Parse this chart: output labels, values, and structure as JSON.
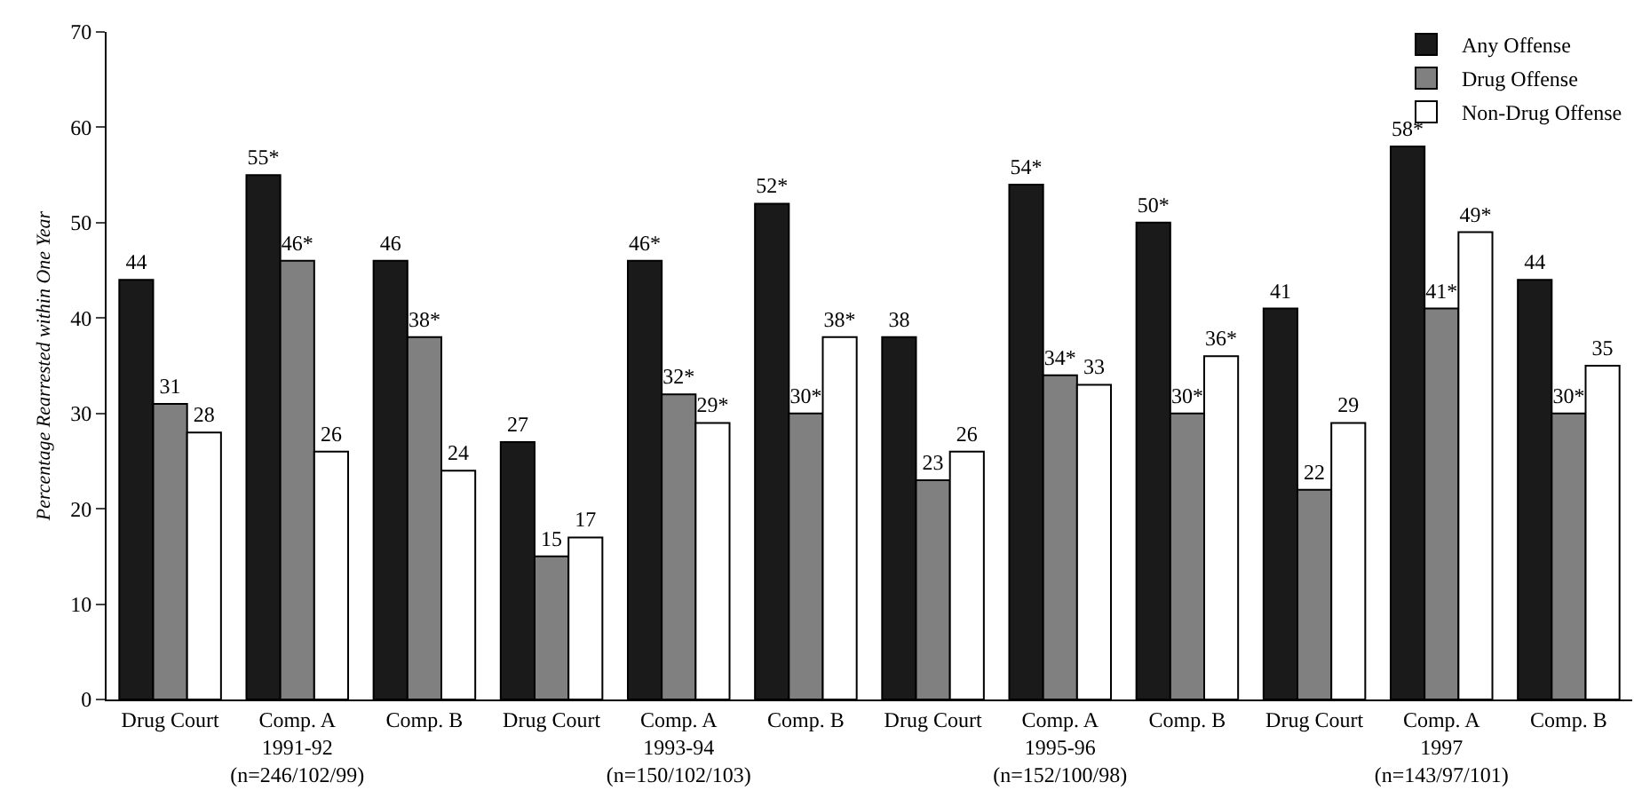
{
  "chart_data": {
    "type": "bar",
    "ylabel": "Percentage Rearrested within One Year",
    "categories": [
      "Drug Court",
      "Comp. A\n1991-92\n(n=246/102/99)",
      "Comp. B",
      "Drug Court",
      "Comp. A\n1993-94\n(n=150/102/103)",
      "Comp. B",
      "Drug Court",
      "Comp. A\n1995-96\n(n=152/100/98)",
      "Comp. B",
      "Drug Court",
      "Comp. A\n1997\n(n=143/97/101)",
      "Comp. B"
    ],
    "series": [
      {
        "name": "Any Offense",
        "color": "#1a1a1a",
        "values": [
          44,
          55,
          46,
          27,
          46,
          52,
          38,
          54,
          50,
          41,
          58,
          44
        ],
        "value_labels": [
          "44",
          "55*",
          "46",
          "27",
          "46*",
          "52*",
          "38",
          "54*",
          "50*",
          "41",
          "58*",
          "44"
        ]
      },
      {
        "name": "Drug Offense",
        "color": "#808080",
        "values": [
          31,
          46,
          38,
          15,
          32,
          30,
          23,
          34,
          30,
          22,
          41,
          30
        ],
        "value_labels": [
          "31",
          "46*",
          "38*",
          "15",
          "32*",
          "30*",
          "23",
          "34*",
          "30*",
          "22",
          "41*",
          "30*"
        ]
      },
      {
        "name": "Non-Drug Offense",
        "color": "#ffffff",
        "values": [
          28,
          26,
          24,
          17,
          29,
          38,
          26,
          33,
          36,
          29,
          49,
          35
        ],
        "value_labels": [
          "28",
          "26",
          "24",
          "17",
          "29*",
          "38*",
          "26",
          "33",
          "36*",
          "29",
          "49*",
          "35"
        ]
      }
    ],
    "ylim": [
      0,
      70
    ],
    "yticks": [
      0,
      10,
      20,
      30,
      40,
      50,
      60,
      70
    ],
    "grid": false,
    "legend": "top right"
  }
}
